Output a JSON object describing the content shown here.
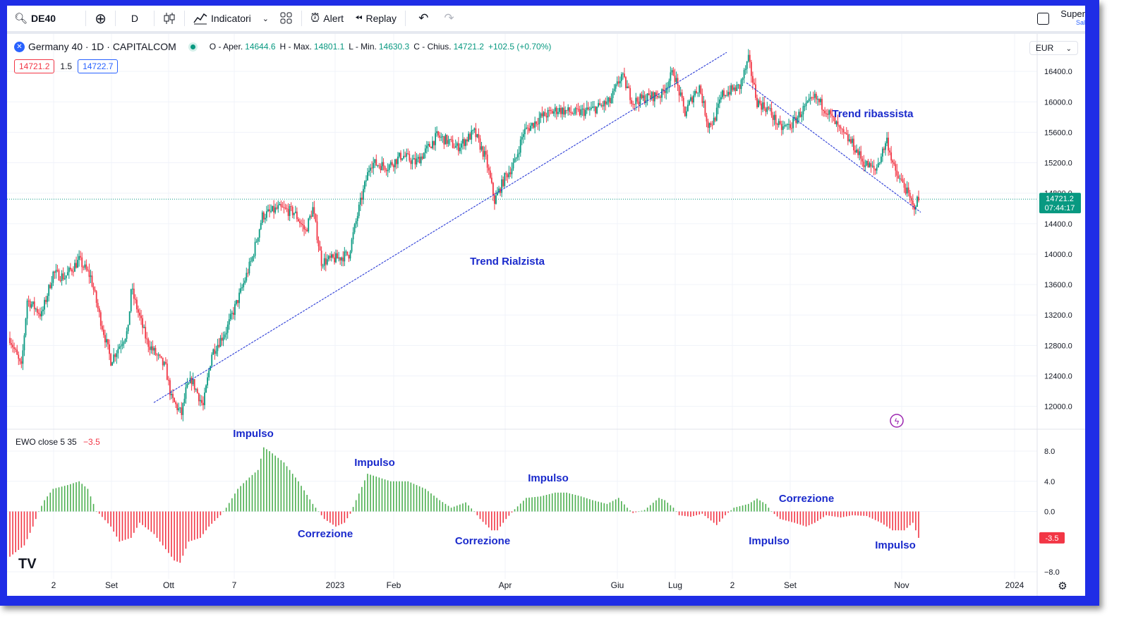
{
  "toolbar": {
    "symbol": "DE40",
    "interval": "D",
    "indicators_label": "Indicatori",
    "alert_label": "Alert",
    "replay_label": "Replay",
    "right_label": "Super",
    "right_sublabel": "Sal"
  },
  "legend": {
    "title": "Germany 40 · 1D · CAPITALCOM",
    "open_label": "O - Aper.",
    "open": "14644.6",
    "high_label": "H - Max.",
    "high": "14801.1",
    "low_label": "L - Min.",
    "low": "14630.3",
    "close_label": "C - Chius.",
    "close": "14721.2",
    "change": "+102.5 (+0.70%)",
    "bid": "14721.2",
    "spread": "1.5",
    "ask": "14722.7"
  },
  "currency": "EUR",
  "last_price_label": "14721.2",
  "countdown_label": "07:44:17",
  "ewo": {
    "label": "EWO close 5 35",
    "value": "−3.5",
    "last_label": "-3.5"
  },
  "colors": {
    "up": "#089981",
    "down": "#f23645",
    "ewo_up": "#4caf50",
    "ewo_down": "#f23645",
    "annotation": "#1a2acc",
    "frame": "#1f2de6"
  },
  "chart_data": [
    {
      "type": "candlestick",
      "ylim": [
        11700,
        16800
      ],
      "yticks": [
        "16400.0",
        "16000.0",
        "15600.0",
        "15200.0",
        "14800.0",
        "14400.0",
        "14000.0",
        "13600.0",
        "13200.0",
        "12800.0",
        "12400.0",
        "12000.0"
      ],
      "xticks": [
        "2",
        "Set",
        "Ott",
        "7",
        "2023",
        "Feb",
        "Apr",
        "Giu",
        "Lug",
        "2",
        "Set",
        "Nov",
        "2024"
      ],
      "path": [
        [
          0,
          12900
        ],
        [
          8,
          12500
        ],
        [
          12,
          13400
        ],
        [
          22,
          13200
        ],
        [
          30,
          13750
        ],
        [
          38,
          13700
        ],
        [
          48,
          13920
        ],
        [
          56,
          13700
        ],
        [
          62,
          13200
        ],
        [
          70,
          12600
        ],
        [
          82,
          13000
        ],
        [
          84,
          13550
        ],
        [
          95,
          12850
        ],
        [
          108,
          12500
        ],
        [
          112,
          12100
        ],
        [
          119,
          11900
        ],
        [
          122,
          12200
        ],
        [
          126,
          12350
        ],
        [
          134,
          12000
        ],
        [
          140,
          12700
        ],
        [
          150,
          13000
        ],
        [
          160,
          13500
        ],
        [
          168,
          13950
        ],
        [
          175,
          14500
        ],
        [
          186,
          14600
        ],
        [
          197,
          14550
        ],
        [
          205,
          14300
        ],
        [
          210,
          14600
        ],
        [
          216,
          13900
        ],
        [
          228,
          13950
        ],
        [
          235,
          14000
        ],
        [
          242,
          14600
        ],
        [
          250,
          15200
        ],
        [
          262,
          15150
        ],
        [
          272,
          15300
        ],
        [
          281,
          15200
        ],
        [
          286,
          15300
        ],
        [
          296,
          15550
        ],
        [
          302,
          15500
        ],
        [
          310,
          15400
        ],
        [
          322,
          15600
        ],
        [
          330,
          15250
        ],
        [
          336,
          14700
        ],
        [
          343,
          15000
        ],
        [
          350,
          15200
        ],
        [
          356,
          15600
        ],
        [
          368,
          15800
        ],
        [
          380,
          15900
        ],
        [
          392,
          15850
        ],
        [
          404,
          15900
        ],
        [
          416,
          16000
        ],
        [
          424,
          16350
        ],
        [
          432,
          16000
        ],
        [
          440,
          16050
        ],
        [
          452,
          16100
        ],
        [
          460,
          16400
        ],
        [
          468,
          15850
        ],
        [
          474,
          16100
        ],
        [
          478,
          16200
        ],
        [
          484,
          15700
        ],
        [
          488,
          15750
        ],
        [
          494,
          16100
        ],
        [
          506,
          16200
        ],
        [
          512,
          16550
        ],
        [
          518,
          16000
        ],
        [
          526,
          15900
        ],
        [
          534,
          15650
        ],
        [
          542,
          15700
        ],
        [
          550,
          15900
        ],
        [
          558,
          16050
        ],
        [
          566,
          15900
        ],
        [
          576,
          15600
        ],
        [
          584,
          15450
        ],
        [
          592,
          15200
        ],
        [
          600,
          15100
        ],
        [
          608,
          15500
        ],
        [
          614,
          15050
        ],
        [
          620,
          14900
        ],
        [
          626,
          14620
        ],
        [
          630,
          14721
        ]
      ],
      "trend_up": {
        "start": [
          "Ott",
          12050
        ],
        "end": [
          "Lug",
          16650
        ]
      },
      "trend_down": {
        "start": [
          "Lug",
          16250
        ],
        "end": [
          "Nov",
          14550
        ]
      },
      "annotations": [
        "Trend Rialzista",
        "Trend ribassista"
      ],
      "last_price": 14721.2
    },
    {
      "type": "bar",
      "name": "EWO close 5 35",
      "ylim": [
        -8,
        9.5
      ],
      "yticks": [
        "8.0",
        "4.0",
        "0.0",
        "−8.0"
      ],
      "last_value": -3.5,
      "path": [
        [
          0,
          -6
        ],
        [
          10,
          -4.5
        ],
        [
          16,
          -2
        ],
        [
          20,
          0
        ],
        [
          24,
          1.5
        ],
        [
          30,
          3
        ],
        [
          40,
          3.5
        ],
        [
          48,
          4
        ],
        [
          54,
          3
        ],
        [
          60,
          0
        ],
        [
          62,
          -0.3
        ],
        [
          70,
          -2
        ],
        [
          76,
          -4
        ],
        [
          84,
          -3.5
        ],
        [
          90,
          -1.5
        ],
        [
          100,
          -3
        ],
        [
          108,
          -5
        ],
        [
          114,
          -6.5
        ],
        [
          118,
          -6.8
        ],
        [
          124,
          -4
        ],
        [
          132,
          -3.5
        ],
        [
          138,
          -2
        ],
        [
          146,
          -0.5
        ],
        [
          150,
          0.5
        ],
        [
          158,
          3
        ],
        [
          166,
          4.5
        ],
        [
          172,
          5.5
        ],
        [
          176,
          8.5
        ],
        [
          180,
          8
        ],
        [
          190,
          6.5
        ],
        [
          200,
          4
        ],
        [
          210,
          1
        ],
        [
          214,
          0
        ],
        [
          218,
          -1
        ],
        [
          226,
          -2
        ],
        [
          232,
          -1.5
        ],
        [
          236,
          -0.3
        ],
        [
          240,
          1.5
        ],
        [
          248,
          5
        ],
        [
          256,
          4.5
        ],
        [
          264,
          4
        ],
        [
          276,
          4
        ],
        [
          288,
          3
        ],
        [
          298,
          1.5
        ],
        [
          306,
          0.5
        ],
        [
          316,
          1.2
        ],
        [
          322,
          0
        ],
        [
          326,
          -1
        ],
        [
          334,
          -2.5
        ],
        [
          338,
          -2.5
        ],
        [
          344,
          -1
        ],
        [
          350,
          0.3
        ],
        [
          358,
          1.8
        ],
        [
          368,
          2
        ],
        [
          378,
          2.5
        ],
        [
          386,
          2.5
        ],
        [
          396,
          2
        ],
        [
          404,
          1.5
        ],
        [
          414,
          1
        ],
        [
          422,
          1.8
        ],
        [
          428,
          0.5
        ],
        [
          432,
          -0.2
        ],
        [
          440,
          0.2
        ],
        [
          450,
          1.8
        ],
        [
          454,
          1.5
        ],
        [
          460,
          0.5
        ],
        [
          464,
          -0.5
        ],
        [
          472,
          -0.7
        ],
        [
          480,
          -0.3
        ],
        [
          486,
          -1.2
        ],
        [
          490,
          -1.8
        ],
        [
          496,
          -0.5
        ],
        [
          502,
          0.5
        ],
        [
          512,
          1
        ],
        [
          518,
          1.7
        ],
        [
          524,
          1
        ],
        [
          528,
          0
        ],
        [
          534,
          -1
        ],
        [
          544,
          -1.5
        ],
        [
          552,
          -2
        ],
        [
          558,
          -1.5
        ],
        [
          566,
          -0.5
        ],
        [
          576,
          -0.8
        ],
        [
          584,
          -0.5
        ],
        [
          594,
          -0.6
        ],
        [
          604,
          -1.5
        ],
        [
          612,
          -2.5
        ],
        [
          620,
          -2.5
        ],
        [
          626,
          -1.5
        ],
        [
          630,
          -3.5
        ]
      ],
      "annotations": [
        "Impulso",
        "Correzione",
        "Impulso",
        "Correzione",
        "Impulso",
        "Impulso",
        "Correzione",
        "Impulso"
      ]
    }
  ]
}
